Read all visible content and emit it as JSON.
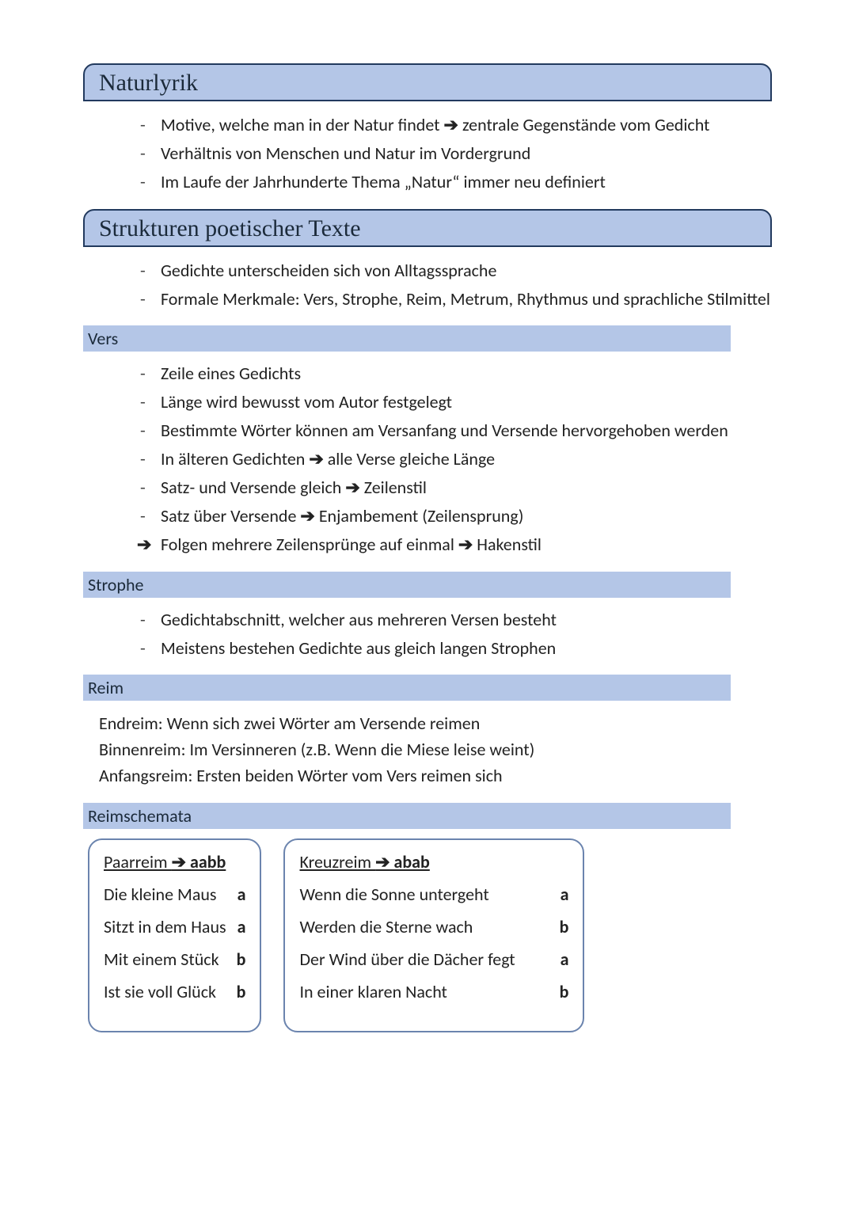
{
  "colors": {
    "banner_bg": "#b4c6e7",
    "banner_border": "#223a5e",
    "box_border": "#6b84ae",
    "page_bg": "#ffffff",
    "text": "#222222"
  },
  "arrow_glyph": "➔",
  "sections": {
    "naturlyrik": {
      "title": "Naturlyrik",
      "items": [
        {
          "pre": "Motive, welche man in der Natur findet ",
          "post": " zentrale Gegenstände vom Gedicht",
          "has_arrow": true
        },
        {
          "pre": "Verhältnis von Menschen und Natur im Vordergrund",
          "has_arrow": false
        },
        {
          "pre": "Im Laufe der Jahrhunderte Thema „Natur“ immer neu definiert",
          "has_arrow": false
        }
      ]
    },
    "strukturen": {
      "title": "Strukturen poetischer Texte",
      "items": [
        {
          "pre": "Gedichte unterscheiden sich von Alltagssprache",
          "has_arrow": false
        },
        {
          "pre": "Formale Merkmale: Vers, Strophe, Reim, Metrum, Rhythmus und sprachliche Stilmittel",
          "has_arrow": false
        }
      ]
    },
    "vers": {
      "heading": "Vers",
      "items": [
        {
          "pre": "Zeile eines Gedichts",
          "has_arrow": false
        },
        {
          "pre": "Länge wird bewusst vom Autor festgelegt",
          "has_arrow": false
        },
        {
          "pre": "Bestimmte Wörter können am Versanfang und Versende hervorgehoben werden",
          "has_arrow": false
        },
        {
          "pre": "In älteren Gedichten ",
          "post": " alle Verse gleiche Länge",
          "has_arrow": true
        },
        {
          "pre": "Satz- und Versende gleich ",
          "post": " Zeilenstil",
          "has_arrow": true
        },
        {
          "pre": "Satz über Versende ",
          "post": " Enjambement (Zeilensprung)",
          "has_arrow": true
        },
        {
          "lead_arrow": true,
          "pre": "Folgen mehrere Zeilensprünge auf einmal ",
          "post": " Hakenstil",
          "has_arrow": true
        }
      ]
    },
    "strophe": {
      "heading": "Strophe",
      "items": [
        {
          "pre": "Gedichtabschnitt, welcher aus mehreren Versen besteht",
          "has_arrow": false
        },
        {
          "pre": "Meistens bestehen Gedichte aus gleich langen Strophen",
          "has_arrow": false
        }
      ]
    },
    "reim": {
      "heading": "Reim",
      "lines": [
        "Endreim: Wenn sich zwei Wörter am Versende reimen",
        "Binnenreim: Im Versinneren (z.B. Wenn die Miese leise weint)",
        "Anfangsreim: Ersten beiden Wörter vom Vers reimen sich"
      ]
    },
    "reimschemata": {
      "heading": "Reimschemata",
      "schemes": [
        {
          "name": "Paarreim",
          "pattern": "aabb",
          "lines": [
            {
              "text": "Die kleine Maus",
              "tag": "a"
            },
            {
              "text": "Sitzt in dem Haus",
              "tag": "a"
            },
            {
              "text": "Mit einem Stück",
              "tag": "b"
            },
            {
              "text": "Ist sie voll Glück",
              "tag": "b"
            }
          ]
        },
        {
          "name": "Kreuzreim",
          "pattern": "abab",
          "lines": [
            {
              "text": "Wenn die Sonne untergeht",
              "tag": "a"
            },
            {
              "text": "Werden die Sterne wach",
              "tag": "b"
            },
            {
              "text": "Der Wind über die Dächer fegt",
              "tag": "a"
            },
            {
              "text": "In einer klaren Nacht",
              "tag": "b"
            }
          ]
        }
      ]
    }
  }
}
